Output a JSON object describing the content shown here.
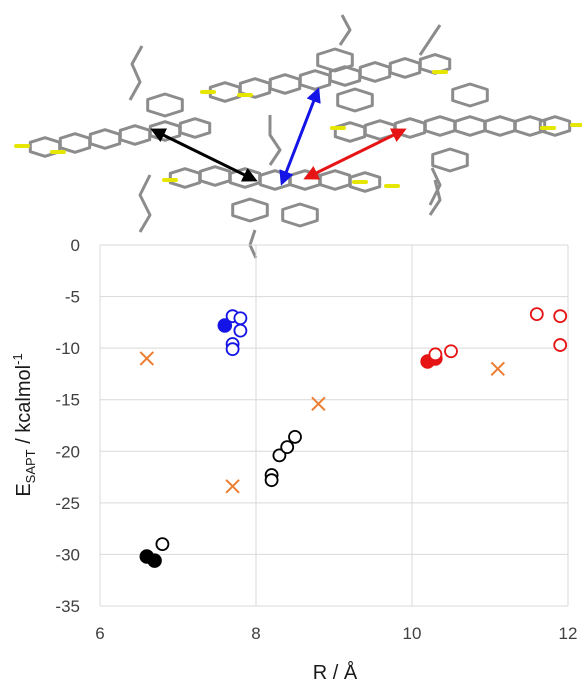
{
  "chart_data": {
    "type": "scatter",
    "title": "",
    "xlabel": "R / Å",
    "ylabel": {
      "main": "E",
      "sub": "SAPT",
      "tail": " / kcalmol",
      "sup": "-1"
    },
    "xlim": [
      6,
      12
    ],
    "ylim": [
      -35,
      0
    ],
    "xticks": [
      6,
      8,
      10,
      12
    ],
    "yticks": [
      0,
      -5,
      -10,
      -15,
      -20,
      -25,
      -30,
      -35
    ],
    "grid": true,
    "legend": "none",
    "colors": {
      "black": "#000000",
      "blue": "#1414e6",
      "red": "#e61414",
      "orange": "#ed7d31"
    },
    "series": [
      {
        "color": "#000000",
        "marker": "filled-circle",
        "points": [
          [
            6.6,
            -30.2
          ],
          [
            6.7,
            -30.6
          ]
        ]
      },
      {
        "color": "#000000",
        "marker": "open-circle",
        "points": [
          [
            6.8,
            -29.0
          ],
          [
            8.2,
            -22.3
          ],
          [
            8.2,
            -22.8
          ],
          [
            8.3,
            -20.4
          ],
          [
            8.4,
            -19.6
          ],
          [
            8.5,
            -18.6
          ]
        ]
      },
      {
        "color": "#1414e6",
        "marker": "filled-circle",
        "points": [
          [
            7.6,
            -7.8
          ]
        ]
      },
      {
        "color": "#1414e6",
        "marker": "open-circle",
        "points": [
          [
            7.7,
            -6.9
          ],
          [
            7.8,
            -7.1
          ],
          [
            7.8,
            -8.3
          ],
          [
            7.7,
            -9.6
          ],
          [
            7.7,
            -10.1
          ]
        ]
      },
      {
        "color": "#e61414",
        "marker": "filled-circle",
        "points": [
          [
            10.2,
            -11.3
          ],
          [
            10.3,
            -11.0
          ]
        ]
      },
      {
        "color": "#e61414",
        "marker": "open-circle",
        "points": [
          [
            10.3,
            -10.6
          ],
          [
            10.5,
            -10.3
          ],
          [
            11.6,
            -6.7
          ],
          [
            11.9,
            -6.9
          ],
          [
            11.9,
            -9.7
          ]
        ]
      },
      {
        "color": "#ed7d31",
        "marker": "cross",
        "points": [
          [
            6.6,
            -11.0
          ],
          [
            7.7,
            -23.4
          ],
          [
            8.8,
            -15.4
          ],
          [
            11.1,
            -12.0
          ]
        ]
      }
    ],
    "arrows": [
      {
        "color": "#000000"
      },
      {
        "color": "#1414e6"
      },
      {
        "color": "#e61414"
      }
    ]
  }
}
